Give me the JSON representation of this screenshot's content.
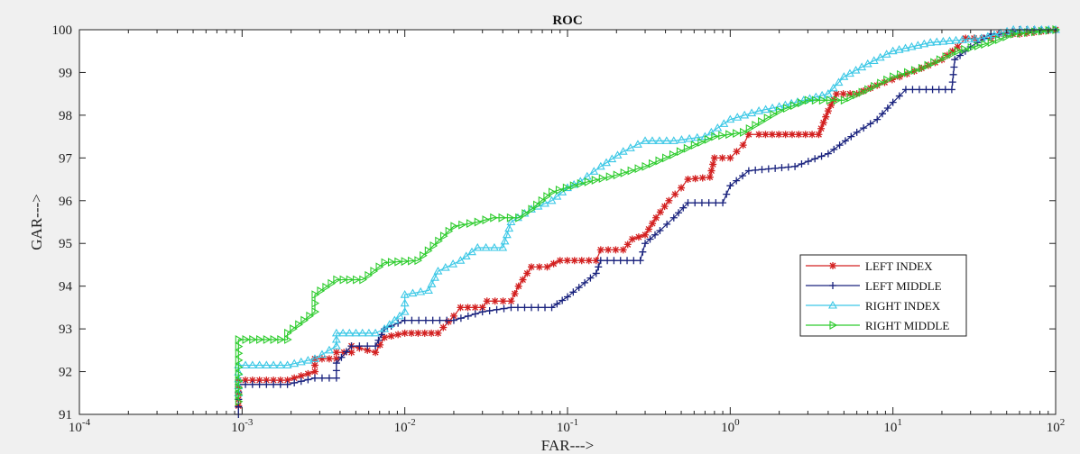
{
  "chart_data": {
    "type": "line",
    "title": "ROC",
    "xlabel": "FAR--->",
    "ylabel": "GAR--->",
    "xscale": "log",
    "xlim": [
      0.0001,
      100
    ],
    "ylim": [
      91,
      100
    ],
    "yticks": [
      91,
      92,
      93,
      94,
      95,
      96,
      97,
      98,
      99,
      100
    ],
    "xticks": [
      {
        "base": "10",
        "exp": "-4"
      },
      {
        "base": "10",
        "exp": "-3"
      },
      {
        "base": "10",
        "exp": "-2"
      },
      {
        "base": "10",
        "exp": "-1"
      },
      {
        "base": "10",
        "exp": "0"
      },
      {
        "base": "10",
        "exp": "1"
      },
      {
        "base": "10",
        "exp": "2"
      }
    ],
    "grid": false,
    "legend_position": "lower-right",
    "series": [
      {
        "name": "LEFT INDEX",
        "color": "#d32020",
        "marker": "star",
        "points": [
          [
            0.00095,
            91.2
          ],
          [
            0.00095,
            91.8
          ],
          [
            0.0019,
            91.8
          ],
          [
            0.0028,
            92.0
          ],
          [
            0.0028,
            92.3
          ],
          [
            0.0038,
            92.3
          ],
          [
            0.0038,
            92.45
          ],
          [
            0.0047,
            92.45
          ],
          [
            0.0047,
            92.6
          ],
          [
            0.0066,
            92.45
          ],
          [
            0.0075,
            92.8
          ],
          [
            0.01,
            92.9
          ],
          [
            0.016,
            92.9
          ],
          [
            0.02,
            93.3
          ],
          [
            0.022,
            93.5
          ],
          [
            0.03,
            93.5
          ],
          [
            0.032,
            93.65
          ],
          [
            0.045,
            93.65
          ],
          [
            0.05,
            94.0
          ],
          [
            0.06,
            94.45
          ],
          [
            0.075,
            94.45
          ],
          [
            0.09,
            94.6
          ],
          [
            0.15,
            94.6
          ],
          [
            0.16,
            94.85
          ],
          [
            0.22,
            94.85
          ],
          [
            0.25,
            95.1
          ],
          [
            0.3,
            95.2
          ],
          [
            0.35,
            95.6
          ],
          [
            0.42,
            96.0
          ],
          [
            0.5,
            96.3
          ],
          [
            0.55,
            96.5
          ],
          [
            0.75,
            96.55
          ],
          [
            0.8,
            97.0
          ],
          [
            1.0,
            97.0
          ],
          [
            1.2,
            97.3
          ],
          [
            1.3,
            97.55
          ],
          [
            1.5,
            97.55
          ],
          [
            3.5,
            97.55
          ],
          [
            4.0,
            98.1
          ],
          [
            4.5,
            98.5
          ],
          [
            6.0,
            98.5
          ],
          [
            8.0,
            98.7
          ],
          [
            11,
            98.9
          ],
          [
            15,
            99.1
          ],
          [
            20,
            99.3
          ],
          [
            25,
            99.6
          ],
          [
            28,
            99.8
          ],
          [
            40,
            99.8
          ],
          [
            45,
            99.9
          ],
          [
            60,
            99.9
          ],
          [
            100,
            100
          ]
        ]
      },
      {
        "name": "LEFT MIDDLE",
        "color": "#1a237e",
        "marker": "plus",
        "points": [
          [
            0.00095,
            91.0
          ],
          [
            0.00095,
            91.7
          ],
          [
            0.0019,
            91.7
          ],
          [
            0.0028,
            91.85
          ],
          [
            0.0038,
            91.85
          ],
          [
            0.0038,
            92.2
          ],
          [
            0.0047,
            92.6
          ],
          [
            0.0066,
            92.6
          ],
          [
            0.0075,
            93.0
          ],
          [
            0.01,
            93.2
          ],
          [
            0.02,
            93.2
          ],
          [
            0.03,
            93.4
          ],
          [
            0.045,
            93.5
          ],
          [
            0.08,
            93.5
          ],
          [
            0.1,
            93.75
          ],
          [
            0.15,
            94.3
          ],
          [
            0.16,
            94.6
          ],
          [
            0.28,
            94.6
          ],
          [
            0.3,
            95.0
          ],
          [
            0.37,
            95.3
          ],
          [
            0.45,
            95.6
          ],
          [
            0.55,
            95.95
          ],
          [
            0.9,
            95.95
          ],
          [
            1.0,
            96.35
          ],
          [
            1.3,
            96.7
          ],
          [
            2.5,
            96.8
          ],
          [
            4.0,
            97.1
          ],
          [
            6.0,
            97.6
          ],
          [
            8.0,
            97.9
          ],
          [
            10,
            98.3
          ],
          [
            12,
            98.6
          ],
          [
            16,
            98.6
          ],
          [
            23,
            98.6
          ],
          [
            24,
            99.3
          ],
          [
            30,
            99.6
          ],
          [
            40,
            99.9
          ],
          [
            50,
            99.9
          ],
          [
            60,
            100
          ],
          [
            100,
            100
          ]
        ]
      },
      {
        "name": "RIGHT INDEX",
        "color": "#3cc8e6",
        "marker": "triangle-up",
        "points": [
          [
            0.00095,
            91.5
          ],
          [
            0.00095,
            92.15
          ],
          [
            0.0019,
            92.15
          ],
          [
            0.0028,
            92.3
          ],
          [
            0.0038,
            92.6
          ],
          [
            0.0038,
            92.9
          ],
          [
            0.0066,
            92.9
          ],
          [
            0.0075,
            93.0
          ],
          [
            0.01,
            93.4
          ],
          [
            0.01,
            93.8
          ],
          [
            0.014,
            93.9
          ],
          [
            0.016,
            94.35
          ],
          [
            0.022,
            94.6
          ],
          [
            0.028,
            94.9
          ],
          [
            0.04,
            94.9
          ],
          [
            0.045,
            95.5
          ],
          [
            0.06,
            95.8
          ],
          [
            0.08,
            96.0
          ],
          [
            0.1,
            96.3
          ],
          [
            0.12,
            96.45
          ],
          [
            0.16,
            96.8
          ],
          [
            0.22,
            97.15
          ],
          [
            0.3,
            97.4
          ],
          [
            0.45,
            97.4
          ],
          [
            0.7,
            97.5
          ],
          [
            1.0,
            97.9
          ],
          [
            1.5,
            98.1
          ],
          [
            2.0,
            98.2
          ],
          [
            4.0,
            98.5
          ],
          [
            5.0,
            98.9
          ],
          [
            7.0,
            99.2
          ],
          [
            10,
            99.5
          ],
          [
            17,
            99.7
          ],
          [
            35,
            99.8
          ],
          [
            55,
            100
          ],
          [
            100,
            100
          ]
        ]
      },
      {
        "name": "RIGHT MIDDLE",
        "color": "#2ecc2e",
        "marker": "triangle-right",
        "points": [
          [
            0.00095,
            91.3
          ],
          [
            0.00095,
            92.75
          ],
          [
            0.0019,
            92.75
          ],
          [
            0.0019,
            92.9
          ],
          [
            0.0028,
            93.4
          ],
          [
            0.0028,
            93.8
          ],
          [
            0.0038,
            94.15
          ],
          [
            0.0055,
            94.15
          ],
          [
            0.0075,
            94.55
          ],
          [
            0.012,
            94.6
          ],
          [
            0.02,
            95.4
          ],
          [
            0.028,
            95.5
          ],
          [
            0.035,
            95.6
          ],
          [
            0.05,
            95.6
          ],
          [
            0.06,
            95.8
          ],
          [
            0.08,
            96.2
          ],
          [
            0.12,
            96.4
          ],
          [
            0.2,
            96.6
          ],
          [
            0.3,
            96.8
          ],
          [
            0.4,
            97.0
          ],
          [
            0.6,
            97.3
          ],
          [
            0.8,
            97.5
          ],
          [
            1.2,
            97.6
          ],
          [
            2.0,
            98.1
          ],
          [
            3.0,
            98.35
          ],
          [
            5.0,
            98.35
          ],
          [
            7.0,
            98.6
          ],
          [
            10,
            98.9
          ],
          [
            15,
            99.1
          ],
          [
            25,
            99.5
          ],
          [
            40,
            99.7
          ],
          [
            55,
            99.9
          ],
          [
            100,
            100
          ]
        ]
      }
    ]
  }
}
